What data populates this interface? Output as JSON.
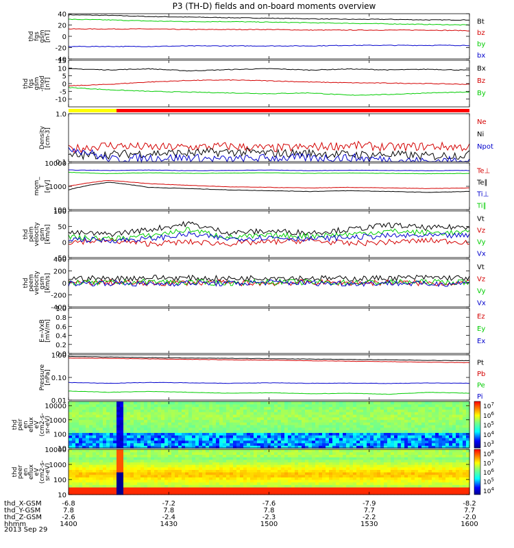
{
  "chart_data": {
    "type": "line",
    "title": "P3 (TH-D) fields and on-board moments overview",
    "date": "2013 Sep 29",
    "x_range": [
      1400,
      1600
    ],
    "x_ticks": [
      1400,
      1430,
      1500,
      1530,
      1600
    ],
    "orbit_rows": [
      {
        "label": "thd_X-GSM",
        "values": [
          "-6.8",
          "-7.2",
          "-7.6",
          "-7.9",
          "-8.2"
        ]
      },
      {
        "label": "thd_Y-GSM",
        "values": [
          "7.8",
          "7.8",
          "7.8",
          "7.7",
          "7.7"
        ]
      },
      {
        "label": "thd_Z-GSM",
        "values": [
          "-2.6",
          "-2.4",
          "-2.3",
          "-2.2",
          "-2.0"
        ]
      },
      {
        "label": "hhmm",
        "values": [
          "1400",
          "1430",
          "1500",
          "1530",
          "1600"
        ]
      }
    ],
    "panels": [
      {
        "id": "fgs",
        "ylabel": [
          "thd",
          "fgs",
          "gsm",
          "[nT]"
        ],
        "ylim": [
          -40,
          40
        ],
        "yscale": "linear",
        "yticks": [
          "40",
          "20",
          "0",
          "-20",
          "-40"
        ],
        "series": [
          {
            "name": "Bt",
            "color": "#000000",
            "values": [
              38,
              37,
              35,
              34,
              33,
              32,
              31,
              30,
              30,
              29,
              29
            ]
          },
          {
            "name": "bz",
            "color": "#d40000",
            "values": [
              13,
              13,
              13,
              12,
              12,
              12,
              11,
              11,
              11,
              11,
              10
            ]
          },
          {
            "name": "by",
            "color": "#00cc00",
            "values": [
              30,
              29,
              27,
              26,
              26,
              25,
              24,
              23,
              22,
              21,
              20
            ]
          },
          {
            "name": "bx",
            "color": "#0000cc",
            "values": [
              -18,
              -18,
              -18,
              -17,
              -17,
              -17,
              -17,
              -16,
              -16,
              -16,
              -16
            ]
          }
        ]
      },
      {
        "id": "fgs_dp",
        "ylabel": [
          "thd",
          "fgs",
          "gsm",
          "-mod",
          "[nT]"
        ],
        "ylim": [
          -15,
          15
        ],
        "yscale": "linear",
        "yticks": [
          "15",
          "10",
          "5",
          "0",
          "-5",
          "-10"
        ],
        "series": [
          {
            "name": "Bx",
            "color": "#000000",
            "values": [
              9.5,
              8.8,
              9.5,
              8.2,
              9.0,
              9.6,
              8.7,
              9.4,
              8.8,
              9.2,
              8.6
            ]
          },
          {
            "name": "Bz",
            "color": "#d40000",
            "values": [
              -1.5,
              -0.5,
              1.0,
              2.0,
              2.3,
              1.8,
              1.0,
              0.5,
              0.3,
              0.0,
              -0.5
            ]
          },
          {
            "name": "By",
            "color": "#00cc00",
            "values": [
              -2.5,
              -4.0,
              -5.0,
              -5.5,
              -6.0,
              -6.5,
              -6.0,
              -7.5,
              -7.0,
              -6.0,
              -5.5
            ]
          }
        ]
      },
      {
        "id": "density",
        "ylabel": [
          "Density",
          "[cm-3]"
        ],
        "ylim": [
          0.1,
          1.0
        ],
        "yscale": "log",
        "yticks": [
          "1.0",
          "0.1"
        ],
        "series": [
          {
            "name": "Ne",
            "color": "#d40000",
            "values": [
              0.18,
              0.22,
              0.2,
              0.2,
              0.21,
              0.19,
              0.2,
              0.22,
              0.2,
              0.21,
              0.2
            ]
          },
          {
            "name": "Ni",
            "color": "#000000",
            "values": [
              0.13,
              0.14,
              0.15,
              0.15,
              0.16,
              0.15,
              0.15,
              0.14,
              0.14,
              0.13,
              0.14
            ]
          },
          {
            "name": "Npot",
            "color": "#0000cc",
            "values": [
              0.2,
              0.11,
              0.12,
              0.12,
              0.11,
              0.12,
              0.12,
              0.12,
              0.11,
              0.1,
              0.11
            ]
          }
        ]
      },
      {
        "id": "temperature",
        "ylabel": [
          "mom_",
          "T",
          "[eV]"
        ],
        "ylim": [
          100,
          10000
        ],
        "yscale": "log",
        "yticks": [
          "10000",
          "1000",
          "100"
        ],
        "series": [
          {
            "name": "Te⊥",
            "color": "#d40000",
            "values": [
              1000,
              1800,
              1300,
              1100,
              950,
              900,
              850,
              900,
              850,
              800,
              850
            ]
          },
          {
            "name": "Te∥",
            "color": "#000000",
            "values": [
              700,
              1500,
              900,
              800,
              700,
              650,
              600,
              650,
              600,
              550,
              600
            ]
          },
          {
            "name": "Ti⊥",
            "color": "#0000cc",
            "values": [
              5000,
              4800,
              5000,
              4700,
              4800,
              5000,
              4700,
              4900,
              4800,
              4700,
              4800
            ]
          },
          {
            "name": "Ti∥",
            "color": "#00cc00",
            "values": [
              4000,
              3500,
              3800,
              3600,
              3700,
              3800,
              3600,
              3700,
              3600,
              3500,
              3600
            ]
          }
        ]
      },
      {
        "id": "peim_velocity",
        "ylabel": [
          "thd",
          "peim",
          "velocity",
          "gsm",
          "[km/s]"
        ],
        "ylim": [
          -50,
          100
        ],
        "yscale": "linear",
        "yticks": [
          "100",
          "50",
          "0",
          "-50"
        ],
        "series": [
          {
            "name": "Vt",
            "color": "#000000",
            "values": [
              30,
              25,
              40,
              60,
              30,
              35,
              30,
              40,
              55,
              45,
              50
            ]
          },
          {
            "name": "Vz",
            "color": "#d40000",
            "values": [
              0,
              5,
              -5,
              0,
              -5,
              0,
              5,
              -5,
              0,
              5,
              0
            ]
          },
          {
            "name": "Vy",
            "color": "#00cc00",
            "values": [
              15,
              10,
              20,
              40,
              15,
              20,
              20,
              25,
              35,
              30,
              30
            ]
          },
          {
            "name": "Vx",
            "color": "#0000cc",
            "values": [
              10,
              5,
              10,
              25,
              10,
              15,
              10,
              15,
              20,
              20,
              20
            ]
          }
        ]
      },
      {
        "id": "peem_velocity",
        "ylabel": [
          "thd",
          "peem",
          "velocity",
          "gsm",
          "[km/s]"
        ],
        "ylim": [
          -400,
          400
        ],
        "yscale": "linear",
        "yticks": [
          "400",
          "200",
          "0",
          "-200",
          "-400"
        ],
        "series": [
          {
            "name": "Vt",
            "color": "#000000",
            "values": [
              80,
              70,
              90,
              80,
              70,
              90,
              80,
              70,
              80,
              90,
              80
            ]
          },
          {
            "name": "Vz",
            "color": "#d40000",
            "values": [
              0,
              10,
              -10,
              5,
              0,
              -5,
              10,
              0,
              5,
              -5,
              0
            ]
          },
          {
            "name": "Vy",
            "color": "#00cc00",
            "values": [
              10,
              0,
              20,
              10,
              0,
              15,
              10,
              5,
              10,
              15,
              10
            ]
          },
          {
            "name": "Vx",
            "color": "#0000cc",
            "values": [
              -10,
              0,
              -20,
              0,
              -10,
              10,
              0,
              -10,
              0,
              -20,
              0
            ]
          }
        ]
      },
      {
        "id": "efield",
        "ylabel": [
          "E=-VxB",
          "[mV/m]"
        ],
        "ylim": [
          0,
          1.0
        ],
        "yscale": "linear",
        "yticks": [
          "1.0",
          "0.8",
          "0.6",
          "0.4",
          "0.2",
          "0.0"
        ],
        "series": [
          {
            "name": "Ez",
            "color": "#d40000",
            "values": []
          },
          {
            "name": "Ey",
            "color": "#00cc00",
            "values": []
          },
          {
            "name": "Ex",
            "color": "#0000cc",
            "values": []
          }
        ]
      },
      {
        "id": "pressure",
        "ylabel": [
          "Pressure",
          "[nPa]"
        ],
        "ylim": [
          0.01,
          1.0
        ],
        "yscale": "log",
        "yticks": [
          "1.00",
          "0.10",
          "0.01"
        ],
        "series": [
          {
            "name": "Pt",
            "color": "#000000",
            "values": [
              0.85,
              0.8,
              0.75,
              0.72,
              0.7,
              0.68,
              0.65,
              0.62,
              0.6,
              0.57,
              0.55
            ]
          },
          {
            "name": "Pb",
            "color": "#d40000",
            "values": [
              0.72,
              0.7,
              0.66,
              0.63,
              0.6,
              0.58,
              0.55,
              0.52,
              0.5,
              0.47,
              0.45
            ]
          },
          {
            "name": "Pe",
            "color": "#00cc00",
            "values": [
              0.025,
              0.022,
              0.024,
              0.022,
              0.02,
              0.021,
              0.019,
              0.02,
              0.018,
              0.022,
              0.02
            ]
          },
          {
            "name": "Pi",
            "color": "#0000cc",
            "values": [
              0.06,
              0.055,
              0.06,
              0.058,
              0.055,
              0.058,
              0.055,
              0.056,
              0.054,
              0.057,
              0.055
            ]
          }
        ]
      },
      {
        "id": "peir_spectrogram",
        "type": "heatmap",
        "ylabel": [
          "thd",
          "peir",
          "en",
          "eflux",
          "eV",
          "(cm2-s-",
          "sr-eV)"
        ],
        "ylim": [
          10,
          20000
        ],
        "yscale": "log",
        "yticks": [
          "10000",
          "1000",
          "100",
          "10"
        ],
        "colorbar": {
          "min_exp": 3,
          "max_exp": 7
        }
      },
      {
        "id": "peer_spectrogram",
        "type": "heatmap",
        "ylabel": [
          "thd",
          "peer",
          "en",
          "eflux",
          "eV",
          "(cm2-s-",
          "sr-eV)"
        ],
        "ylim": [
          10,
          10000
        ],
        "yscale": "log",
        "yticks": [
          "10000",
          "1000",
          "100",
          "10"
        ],
        "colorbar": {
          "min_exp": 4,
          "max_exp": 8
        }
      }
    ]
  }
}
